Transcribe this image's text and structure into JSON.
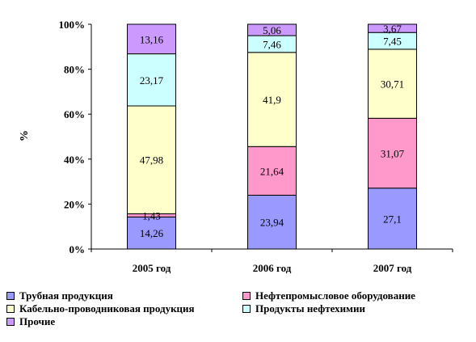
{
  "chart_data": {
    "type": "bar",
    "stacked": true,
    "percent_stacked": true,
    "categories": [
      "2005 год",
      "2006 год",
      "2007 год"
    ],
    "series": [
      {
        "name": "Трубная продукция",
        "values": [
          14.26,
          23.94,
          27.1
        ],
        "labels": [
          "14,26",
          "23,94",
          "27,1"
        ],
        "color": "#9999ff"
      },
      {
        "name": "Нефтепромысловое оборудование",
        "values": [
          1.43,
          21.64,
          31.07
        ],
        "labels": [
          "1,43",
          "21,64",
          "31,07"
        ],
        "color": "#ff99cc"
      },
      {
        "name": "Кабельно-проводниковая продукция",
        "values": [
          47.98,
          41.9,
          30.71
        ],
        "labels": [
          "47,98",
          "41,9",
          "30,71"
        ],
        "color": "#ffffcc"
      },
      {
        "name": "Продукты нефтехимии",
        "values": [
          23.17,
          7.46,
          7.45
        ],
        "labels": [
          "23,17",
          "7,46",
          "7,45"
        ],
        "color": "#ccffff"
      },
      {
        "name": "Прочие",
        "values": [
          13.16,
          5.06,
          3.67
        ],
        "labels": [
          "13,16",
          "5,06",
          "3,67"
        ],
        "color": "#cc99ff"
      }
    ],
    "ylabel": "%",
    "ylim": [
      0,
      100
    ],
    "yticks": [
      "0%",
      "20%",
      "40%",
      "60%",
      "80%",
      "100%"
    ],
    "legend_position": "bottom",
    "grid": false
  }
}
